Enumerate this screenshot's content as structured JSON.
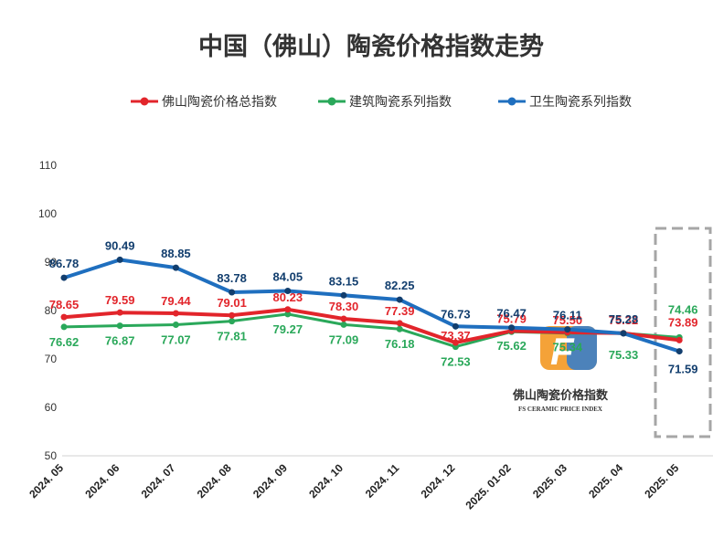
{
  "chart_data": {
    "type": "line",
    "title": "中国（佛山）陶瓷价格指数走势",
    "categories": [
      "2024. 05",
      "2024. 06",
      "2024. 07",
      "2024. 08",
      "2024. 09",
      "2024. 10",
      "2024. 11",
      "2024. 12",
      "2025. 01-02",
      "2025. 03",
      "2025. 04",
      "2025. 05"
    ],
    "ylim": [
      50,
      110
    ],
    "yticks": [
      50,
      60,
      70,
      80,
      90,
      100,
      110
    ],
    "grid": false,
    "legend_position": "top",
    "series": [
      {
        "name": "佛山陶瓷价格总指数",
        "color": "#e2252b",
        "values": [
          78.65,
          79.59,
          79.44,
          79.01,
          80.23,
          78.3,
          77.39,
          73.37,
          75.79,
          75.5,
          75.32,
          73.89
        ],
        "labels": [
          "78.65",
          "79.59",
          "79.44",
          "79.01",
          "80.23",
          "78.30",
          "77.39",
          "73.37",
          "75.79",
          "75.50",
          "75.32",
          "73.89"
        ]
      },
      {
        "name": "建筑陶瓷系列指数",
        "color": "#2aa85a",
        "values": [
          76.62,
          76.87,
          77.07,
          77.81,
          79.27,
          77.09,
          76.18,
          72.53,
          75.62,
          75.34,
          75.33,
          74.46
        ],
        "labels": [
          "76.62",
          "76.87",
          "77.07",
          "77.81",
          "79.27",
          "77.09",
          "76.18",
          "72.53",
          "75.62",
          "75.34",
          "75.33",
          "74.46"
        ]
      },
      {
        "name": "卫生陶瓷系列指数",
        "color": "#1f6fbf",
        "label_color": "#123e6e",
        "values": [
          86.78,
          90.49,
          88.85,
          83.78,
          84.05,
          83.15,
          82.25,
          76.73,
          76.47,
          76.11,
          75.28,
          71.59
        ],
        "labels": [
          "86.78",
          "90.49",
          "88.85",
          "83.78",
          "84.05",
          "83.15",
          "82.25",
          "76.73",
          "76.47",
          "76.11",
          "75.28",
          "71.59"
        ]
      }
    ],
    "highlight_box": {
      "category": "2025. 05",
      "style": "dashed",
      "color": "#a6a6a6"
    }
  },
  "logo": {
    "letter": "F",
    "name": "佛山陶瓷价格指数",
    "subtitle": "FS CERAMIC PRICE INDEX"
  }
}
